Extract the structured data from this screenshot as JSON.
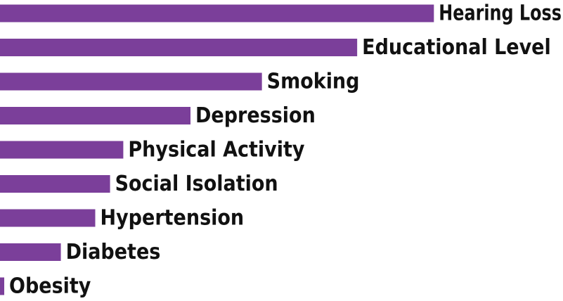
{
  "chart_data": {
    "type": "bar",
    "orientation": "horizontal",
    "categories": [
      "Hearing Loss",
      "Educational Level",
      "Smoking",
      "Depression",
      "Physical Activity",
      "Social Isolation",
      "Hypertension",
      "Diabetes",
      "Obesity"
    ],
    "values": [
      8.2,
      6.75,
      4.95,
      3.6,
      2.33,
      2.08,
      1.8,
      1.15,
      0.08
    ],
    "title": "",
    "xlabel": "",
    "ylabel": "",
    "xlim": [
      0,
      10.64
    ],
    "grid": false,
    "legend": "none",
    "bar_color": "#7b3f9a",
    "label_color": "#111111",
    "labels_position": "at-bar-end"
  }
}
